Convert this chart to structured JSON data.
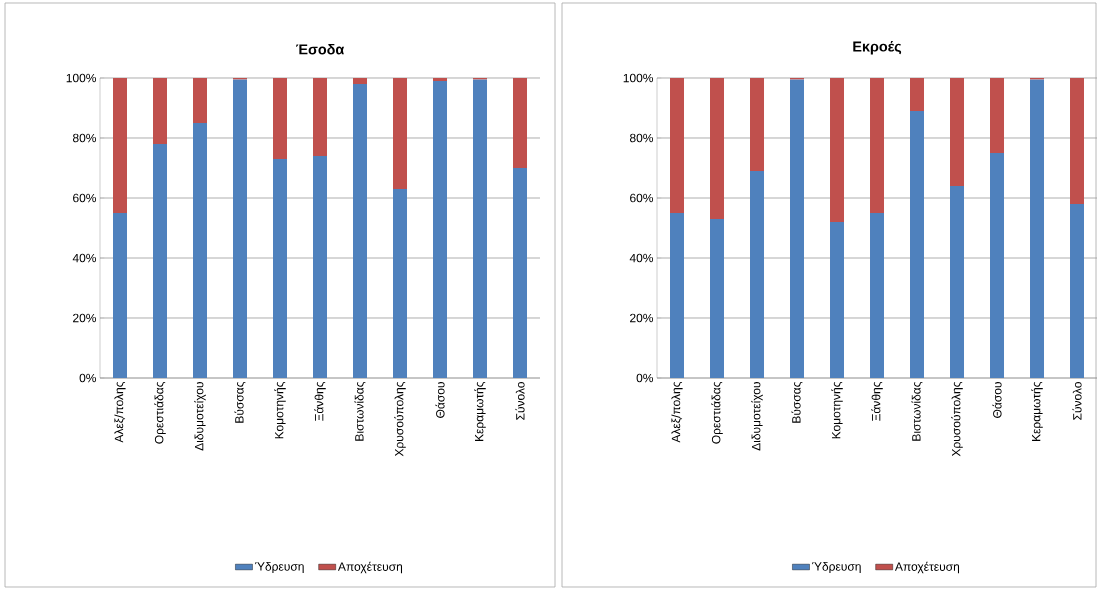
{
  "chart_data": [
    {
      "type": "bar",
      "title": "Έσοδα",
      "stacked": true,
      "categories": [
        "Αλεξ/πολης",
        "Ορεστιάδας",
        "Διδυμοτείχου",
        "Βύσσας",
        "Κομοτηνής",
        "Ξάνθης",
        "Βιστωνίδας",
        "Χρυσούπολης",
        "Θάσου",
        "Κεραμωτής",
        "Σύνολο"
      ],
      "series": [
        {
          "name": "Ύδρευση",
          "color": "#4f81bd",
          "values": [
            55,
            78,
            85,
            99.5,
            73,
            74,
            98,
            63,
            99,
            99.5,
            70
          ]
        },
        {
          "name": "Αποχέτευση",
          "color": "#c0504d",
          "values": [
            45,
            22,
            15,
            0.5,
            27,
            26,
            2,
            37,
            1,
            0.5,
            30
          ]
        }
      ],
      "ylim": [
        0,
        100
      ],
      "yticks": [
        {
          "value": 0,
          "label": "0%"
        },
        {
          "value": 20,
          "label": "20%"
        },
        {
          "value": 40,
          "label": "40%"
        },
        {
          "value": 60,
          "label": "60%"
        },
        {
          "value": 80,
          "label": "80%"
        },
        {
          "value": 100,
          "label": "100%"
        }
      ],
      "grid": "y",
      "legend": "bottom"
    },
    {
      "type": "bar",
      "title": "Εκροές",
      "stacked": true,
      "categories": [
        "Αλεξ/πολης",
        "Ορεστιάδας",
        "Διδυμοτείχου",
        "Βύσσας",
        "Κομοτηνής",
        "Ξάνθης",
        "Βιστωνίδας",
        "Χρυσούπολης",
        "Θάσου",
        "Κεραμωτής",
        "Σύνολο"
      ],
      "series": [
        {
          "name": "Ύδρευση",
          "color": "#4f81bd",
          "values": [
            55,
            53,
            69,
            99.5,
            52,
            55,
            89,
            64,
            75,
            99.5,
            58
          ]
        },
        {
          "name": "Αποχέτευση",
          "color": "#c0504d",
          "values": [
            45,
            47,
            31,
            0.5,
            48,
            45,
            11,
            36,
            25,
            0.5,
            42
          ]
        }
      ],
      "ylim": [
        0,
        100
      ],
      "yticks": [
        {
          "value": 0,
          "label": "0%"
        },
        {
          "value": 20,
          "label": "20%"
        },
        {
          "value": 40,
          "label": "40%"
        },
        {
          "value": 60,
          "label": "60%"
        },
        {
          "value": 80,
          "label": "80%"
        },
        {
          "value": 100,
          "label": "100%"
        }
      ],
      "grid": "y",
      "legend": "bottom"
    }
  ]
}
